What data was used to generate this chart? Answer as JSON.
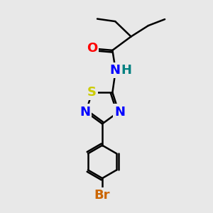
{
  "background_color": "#e8e8e8",
  "bond_color": "#000000",
  "bond_width": 1.8,
  "atoms": {
    "O": {
      "color": "#ff0000",
      "fontsize": 13,
      "fontweight": "bold"
    },
    "N": {
      "color": "#0000ff",
      "fontsize": 13,
      "fontweight": "bold"
    },
    "H": {
      "color": "#008080",
      "fontsize": 13,
      "fontweight": "bold"
    },
    "S": {
      "color": "#cccc00",
      "fontsize": 13,
      "fontweight": "bold"
    },
    "Br": {
      "color": "#cc6600",
      "fontsize": 13,
      "fontweight": "bold"
    }
  },
  "figsize": [
    3.0,
    3.0
  ],
  "dpi": 100
}
